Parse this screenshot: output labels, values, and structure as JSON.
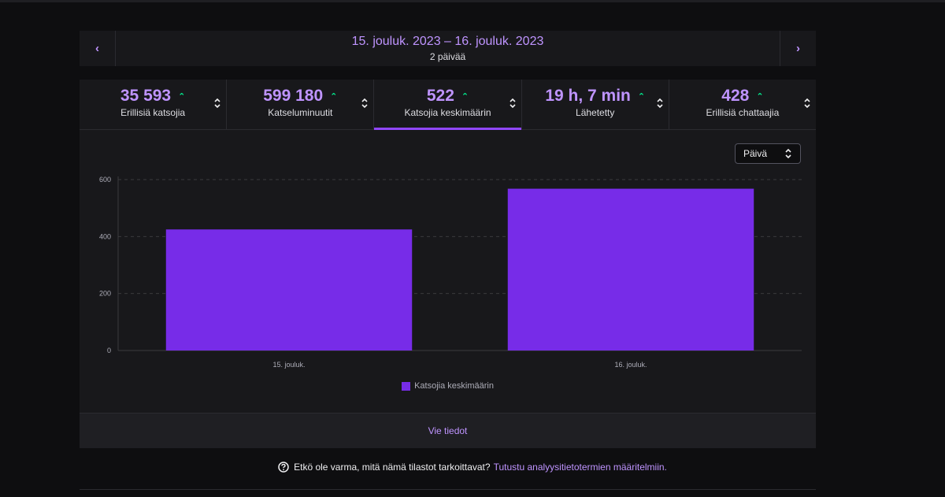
{
  "date_range": {
    "title": "15. jouluk. 2023 – 16. jouluk. 2023",
    "subtitle": "2 päivää",
    "prev_icon": "chevron-left-icon",
    "next_icon": "chevron-right-icon"
  },
  "tabs": [
    {
      "value": "35 593",
      "label": "Erillisiä katsojia",
      "trend": "up"
    },
    {
      "value": "599 180",
      "label": "Katseluminuutit",
      "trend": "up"
    },
    {
      "value": "522",
      "label": "Katsojia keskimäärin",
      "trend": "up",
      "active": true
    },
    {
      "value": "19 h, 7 min",
      "label": "Lähetetty",
      "trend": "up"
    },
    {
      "value": "428",
      "label": "Erillisiä chattaajia",
      "trend": "up"
    }
  ],
  "interval_select": {
    "value": "Päivä"
  },
  "chart_data": {
    "type": "bar",
    "categories": [
      "15. jouluk.",
      "16. jouluk."
    ],
    "series": [
      {
        "name": "Katsojia keskimäärin",
        "values": [
          425,
          568
        ]
      }
    ],
    "ylim": [
      0,
      600
    ],
    "yticks": [
      0,
      200,
      400,
      600
    ],
    "grid": true,
    "legend": "bottom-center"
  },
  "footer": {
    "export_label": "Vie tiedot"
  },
  "help": {
    "text": "Etkö ole varma, mitä nämä tilastot tarkoittavat?",
    "link": "Tutustu analyysitietotermien määritelmiin."
  },
  "colors": {
    "accent": "#bf94ff",
    "bar": "#772ce8",
    "trend_up": "#00f593"
  }
}
